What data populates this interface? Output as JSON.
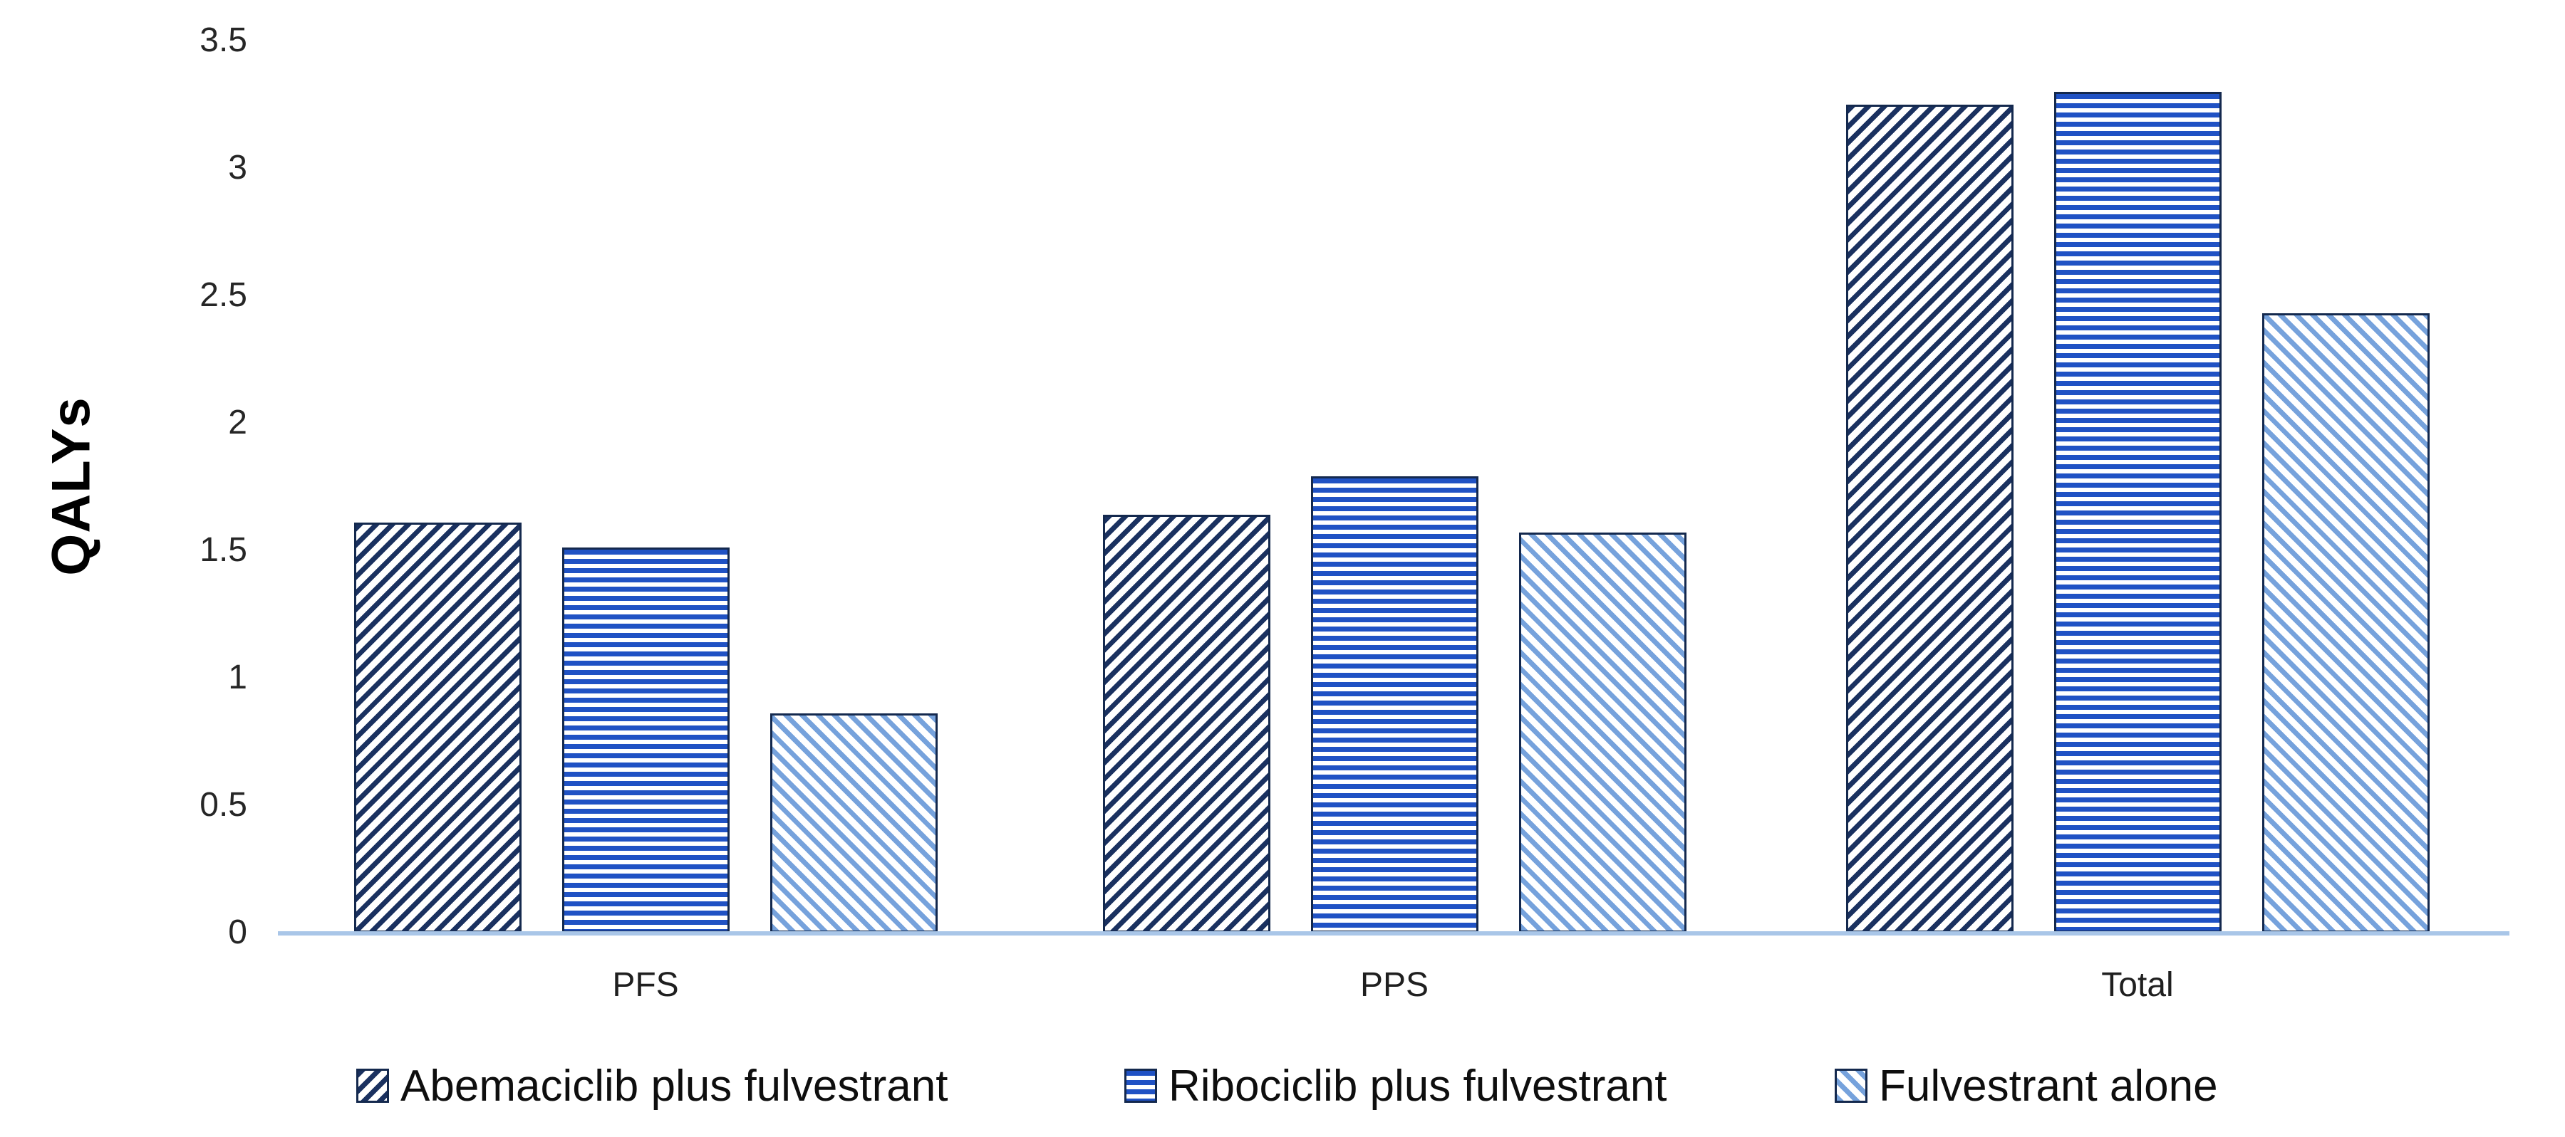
{
  "chart_data": {
    "type": "bar",
    "title": "",
    "ylabel": "QALYs",
    "xlabel": "",
    "categories": [
      "PFS",
      "PPS",
      "Total"
    ],
    "series": [
      {
        "name": "Abemaciclib plus fulvestrant",
        "values": [
          1.61,
          1.64,
          3.25
        ],
        "color": "#1A3160",
        "pattern": "diagonal-rising-hatch"
      },
      {
        "name": "Ribociclib plus fulvestrant",
        "values": [
          1.51,
          1.79,
          3.3
        ],
        "color": "#2052C4",
        "pattern": "horizontal-lines"
      },
      {
        "name": "Fulvestrant alone",
        "values": [
          0.86,
          1.57,
          2.43
        ],
        "color": "#76A2DC",
        "pattern": "diagonal-falling-hatch"
      }
    ],
    "ylim": [
      0,
      3.5
    ],
    "y_tick_labels": [
      "0",
      "0.5",
      "1",
      "1.5",
      "2",
      "2.5",
      "3",
      "3.5"
    ],
    "y_tick_values": [
      0,
      0.5,
      1,
      1.5,
      2,
      2.5,
      3,
      3.5
    ],
    "grid": false,
    "legend_position": "bottom",
    "axis_line_color": "#A9C6E8",
    "bar_border_color": "#14294E",
    "text_color": "#1f1f1f"
  }
}
